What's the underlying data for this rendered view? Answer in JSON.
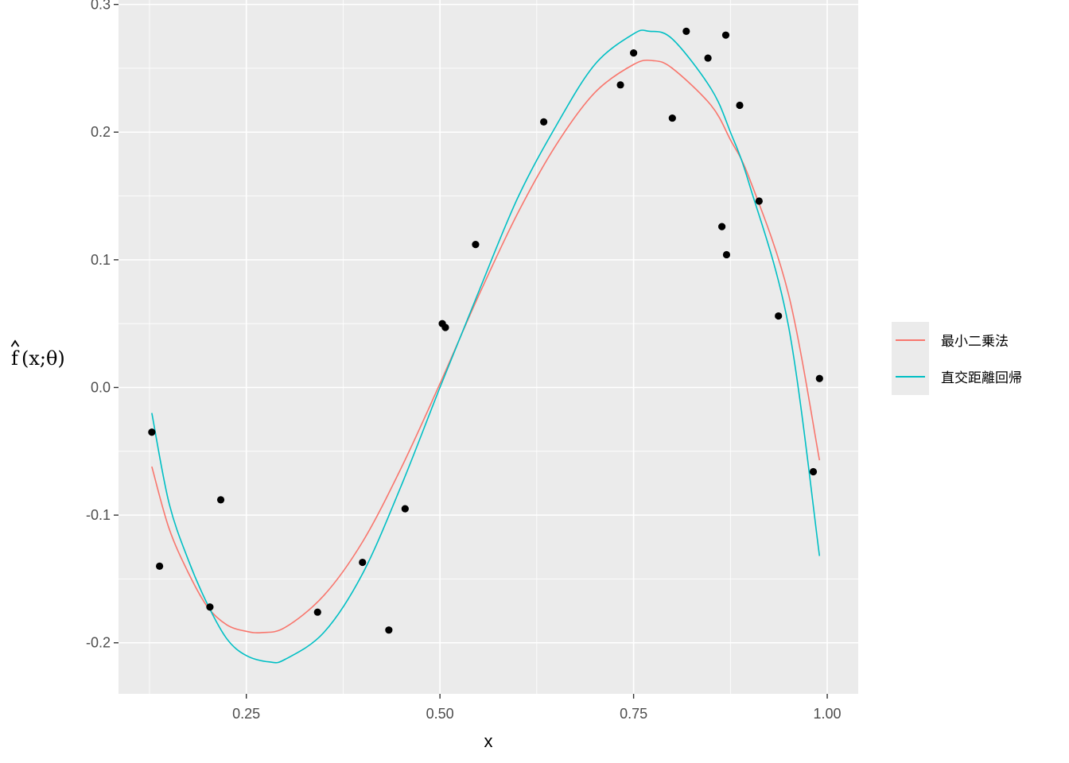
{
  "chart_data": {
    "type": "scatter",
    "xlabel": "x",
    "ylabel_parts": [
      "f",
      "(x;θ)"
    ],
    "xlim": [
      0.085,
      1.04
    ],
    "ylim": [
      -0.24,
      0.3035
    ],
    "x_ticks": [
      0.25,
      0.5,
      0.75,
      1.0
    ],
    "x_tick_labels": [
      "0.25",
      "0.50",
      "0.75",
      "1.00"
    ],
    "y_ticks": [
      -0.2,
      -0.1,
      0.0,
      0.1,
      0.2,
      0.3
    ],
    "y_tick_labels": [
      "-0.2",
      "-0.1",
      "0.0",
      "0.1",
      "0.2",
      "0.3"
    ],
    "grid": true,
    "legend_position": "right",
    "points": [
      {
        "x": 0.128,
        "y": -0.035
      },
      {
        "x": 0.138,
        "y": -0.14
      },
      {
        "x": 0.203,
        "y": -0.172
      },
      {
        "x": 0.217,
        "y": -0.088
      },
      {
        "x": 0.342,
        "y": -0.176
      },
      {
        "x": 0.4,
        "y": -0.137
      },
      {
        "x": 0.434,
        "y": -0.19
      },
      {
        "x": 0.455,
        "y": -0.095
      },
      {
        "x": 0.503,
        "y": 0.05
      },
      {
        "x": 0.507,
        "y": 0.047
      },
      {
        "x": 0.546,
        "y": 0.112
      },
      {
        "x": 0.634,
        "y": 0.208
      },
      {
        "x": 0.733,
        "y": 0.237
      },
      {
        "x": 0.75,
        "y": 0.262
      },
      {
        "x": 0.8,
        "y": 0.211
      },
      {
        "x": 0.818,
        "y": 0.279
      },
      {
        "x": 0.846,
        "y": 0.258
      },
      {
        "x": 0.864,
        "y": 0.126
      },
      {
        "x": 0.869,
        "y": 0.276
      },
      {
        "x": 0.87,
        "y": 0.104
      },
      {
        "x": 0.887,
        "y": 0.221
      },
      {
        "x": 0.912,
        "y": 0.146
      },
      {
        "x": 0.937,
        "y": 0.056
      },
      {
        "x": 0.982,
        "y": -0.066
      },
      {
        "x": 0.99,
        "y": 0.007
      }
    ],
    "series": [
      {
        "name": "最小二乗法",
        "color": "#F8766D",
        "x": [
          0.128,
          0.15,
          0.175,
          0.2,
          0.225,
          0.25,
          0.27,
          0.3,
          0.35,
          0.4,
          0.45,
          0.5,
          0.55,
          0.6,
          0.65,
          0.7,
          0.75,
          0.775,
          0.8,
          0.85,
          0.875,
          0.9,
          0.95,
          0.99
        ],
        "y": [
          -0.062,
          -0.11,
          -0.145,
          -0.172,
          -0.186,
          -0.191,
          -0.192,
          -0.188,
          -0.163,
          -0.121,
          -0.063,
          0.003,
          0.072,
          0.136,
          0.19,
          0.231,
          0.253,
          0.256,
          0.25,
          0.221,
          0.194,
          0.163,
          0.073,
          -0.057
        ]
      },
      {
        "name": "直交距離回帰",
        "color": "#00BFC4",
        "x": [
          0.128,
          0.15,
          0.175,
          0.2,
          0.225,
          0.25,
          0.28,
          0.3,
          0.35,
          0.4,
          0.45,
          0.5,
          0.55,
          0.6,
          0.65,
          0.7,
          0.75,
          0.77,
          0.8,
          0.85,
          0.875,
          0.9,
          0.95,
          0.99
        ],
        "y": [
          -0.02,
          -0.09,
          -0.135,
          -0.17,
          -0.197,
          -0.21,
          -0.215,
          -0.213,
          -0.192,
          -0.146,
          -0.077,
          0.0,
          0.075,
          0.148,
          0.205,
          0.253,
          0.277,
          0.279,
          0.273,
          0.234,
          0.2,
          0.158,
          0.048,
          -0.132
        ]
      }
    ]
  }
}
